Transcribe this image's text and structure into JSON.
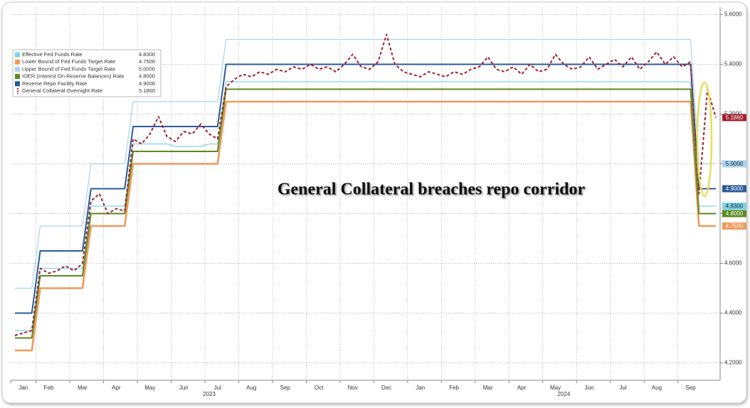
{
  "chart_data": {
    "type": "line",
    "annotation": "General Collateral breaches repo corridor",
    "categories": [
      null,
      "Jan",
      null,
      null,
      "Feb",
      null,
      null,
      null,
      "Mar",
      null,
      null,
      null,
      "Apr",
      null,
      null,
      null,
      "May",
      null,
      null,
      null,
      "Jun",
      null,
      null,
      null,
      "Jul",
      null,
      null,
      null,
      "Aug",
      null,
      null,
      null,
      "Sep",
      null,
      null,
      null,
      "Oct",
      null,
      null,
      null,
      "Nov",
      null,
      null,
      null,
      "Dec",
      null,
      null,
      null,
      "Jan",
      null,
      null,
      null,
      "Feb",
      null,
      null,
      null,
      "Mar",
      null,
      null,
      null,
      "Apr",
      null,
      null,
      null,
      "May",
      null,
      null,
      null,
      "Jun",
      null,
      null,
      null,
      "Jul",
      null,
      null,
      null,
      "Aug",
      null,
      null,
      null,
      "Sep",
      null,
      null,
      null
    ],
    "x_groups": [
      {
        "label": "2023",
        "from": 0,
        "to": 46
      },
      {
        "label": "2024",
        "from": 47,
        "to": 83
      }
    ],
    "ylim": [
      4.13,
      5.63
    ],
    "yticks": [
      {
        "value": 4.2,
        "label": "4.2000"
      },
      {
        "value": 4.4,
        "label": "4.4000"
      },
      {
        "value": 4.6,
        "label": "4.6000"
      },
      {
        "value": 4.8,
        "label": "4.8000"
      },
      {
        "value": 5.0,
        "label": "5.0000"
      },
      {
        "value": 5.2,
        "label": "5.2000"
      },
      {
        "value": 5.4,
        "label": "5.4000"
      },
      {
        "value": 5.6,
        "label": "5.6000"
      }
    ],
    "grid": true,
    "legend": "upper left",
    "series": [
      {
        "name": "Effective Fed Funds Rate",
        "color": "#7fd3e6",
        "last_value_label": "4.8300",
        "values": [
          4.33,
          4.33,
          4.33,
          4.58,
          4.58,
          4.58,
          4.58,
          4.58,
          4.58,
          4.83,
          4.83,
          4.83,
          4.83,
          4.83,
          5.08,
          5.08,
          5.08,
          5.08,
          5.08,
          5.07,
          5.07,
          5.07,
          5.07,
          5.08,
          5.08,
          5.33,
          5.33,
          5.33,
          5.33,
          5.33,
          5.33,
          5.33,
          5.33,
          5.33,
          5.33,
          5.33,
          5.33,
          5.33,
          5.33,
          5.33,
          5.33,
          5.33,
          5.33,
          5.33,
          5.33,
          5.33,
          5.33,
          5.33,
          5.33,
          5.33,
          5.33,
          5.33,
          5.33,
          5.33,
          5.33,
          5.33,
          5.33,
          5.33,
          5.33,
          5.33,
          5.33,
          5.33,
          5.33,
          5.33,
          5.33,
          5.33,
          5.33,
          5.33,
          5.33,
          5.33,
          5.33,
          5.33,
          5.33,
          5.33,
          5.33,
          5.33,
          5.33,
          5.33,
          5.33,
          5.33,
          5.33,
          4.83,
          4.83,
          4.83
        ]
      },
      {
        "name": "Lower Bound of Fed Funds Target Rate",
        "color": "#f0995a",
        "last_value_label": "4.7500",
        "values": [
          4.25,
          4.25,
          4.25,
          4.5,
          4.5,
          4.5,
          4.5,
          4.5,
          4.5,
          4.75,
          4.75,
          4.75,
          4.75,
          4.75,
          5.0,
          5.0,
          5.0,
          5.0,
          5.0,
          5.0,
          5.0,
          5.0,
          5.0,
          5.0,
          5.0,
          5.25,
          5.25,
          5.25,
          5.25,
          5.25,
          5.25,
          5.25,
          5.25,
          5.25,
          5.25,
          5.25,
          5.25,
          5.25,
          5.25,
          5.25,
          5.25,
          5.25,
          5.25,
          5.25,
          5.25,
          5.25,
          5.25,
          5.25,
          5.25,
          5.25,
          5.25,
          5.25,
          5.25,
          5.25,
          5.25,
          5.25,
          5.25,
          5.25,
          5.25,
          5.25,
          5.25,
          5.25,
          5.25,
          5.25,
          5.25,
          5.25,
          5.25,
          5.25,
          5.25,
          5.25,
          5.25,
          5.25,
          5.25,
          5.25,
          5.25,
          5.25,
          5.25,
          5.25,
          5.25,
          5.25,
          5.25,
          4.75,
          4.75,
          4.75
        ]
      },
      {
        "name": "Upper Bound of Fed Funds Target Rate",
        "color": "#a9d3ec",
        "last_value_label": "5.0000",
        "values": [
          4.5,
          4.5,
          4.5,
          4.75,
          4.75,
          4.75,
          4.75,
          4.75,
          4.75,
          5.0,
          5.0,
          5.0,
          5.0,
          5.0,
          5.25,
          5.25,
          5.25,
          5.25,
          5.25,
          5.25,
          5.25,
          5.25,
          5.25,
          5.25,
          5.25,
          5.5,
          5.5,
          5.5,
          5.5,
          5.5,
          5.5,
          5.5,
          5.5,
          5.5,
          5.5,
          5.5,
          5.5,
          5.5,
          5.5,
          5.5,
          5.5,
          5.5,
          5.5,
          5.5,
          5.5,
          5.5,
          5.5,
          5.5,
          5.5,
          5.5,
          5.5,
          5.5,
          5.5,
          5.5,
          5.5,
          5.5,
          5.5,
          5.5,
          5.5,
          5.5,
          5.5,
          5.5,
          5.5,
          5.5,
          5.5,
          5.5,
          5.5,
          5.5,
          5.5,
          5.5,
          5.5,
          5.5,
          5.5,
          5.5,
          5.5,
          5.5,
          5.5,
          5.5,
          5.5,
          5.5,
          5.5,
          5.0,
          5.0,
          5.0
        ]
      },
      {
        "name": "IOER (Interest On Reserve Balances) Rate",
        "color": "#5b8a1f",
        "last_value_label": "4.8000",
        "values": [
          4.3,
          4.3,
          4.3,
          4.55,
          4.55,
          4.55,
          4.55,
          4.55,
          4.55,
          4.8,
          4.8,
          4.8,
          4.8,
          4.8,
          5.05,
          5.05,
          5.05,
          5.05,
          5.05,
          5.05,
          5.05,
          5.05,
          5.05,
          5.05,
          5.05,
          5.3,
          5.3,
          5.3,
          5.3,
          5.3,
          5.3,
          5.3,
          5.3,
          5.3,
          5.3,
          5.3,
          5.3,
          5.3,
          5.3,
          5.3,
          5.3,
          5.3,
          5.3,
          5.3,
          5.3,
          5.3,
          5.3,
          5.3,
          5.3,
          5.3,
          5.3,
          5.3,
          5.3,
          5.3,
          5.3,
          5.3,
          5.3,
          5.3,
          5.3,
          5.3,
          5.3,
          5.3,
          5.3,
          5.3,
          5.3,
          5.3,
          5.3,
          5.3,
          5.3,
          5.3,
          5.3,
          5.3,
          5.3,
          5.3,
          5.3,
          5.3,
          5.3,
          5.3,
          5.3,
          5.3,
          5.3,
          4.8,
          4.8,
          4.8
        ]
      },
      {
        "name": "Reverse Repo Facility Rate",
        "color": "#2b5b98",
        "last_value_label": "4.9000",
        "values": [
          4.4,
          4.4,
          4.4,
          4.65,
          4.65,
          4.65,
          4.65,
          4.65,
          4.65,
          4.9,
          4.9,
          4.9,
          4.9,
          4.9,
          5.15,
          5.15,
          5.15,
          5.15,
          5.15,
          5.15,
          5.15,
          5.15,
          5.15,
          5.15,
          5.15,
          5.4,
          5.4,
          5.4,
          5.4,
          5.4,
          5.4,
          5.4,
          5.4,
          5.4,
          5.4,
          5.4,
          5.4,
          5.4,
          5.4,
          5.4,
          5.4,
          5.4,
          5.4,
          5.4,
          5.4,
          5.4,
          5.4,
          5.4,
          5.4,
          5.4,
          5.4,
          5.4,
          5.4,
          5.4,
          5.4,
          5.4,
          5.4,
          5.4,
          5.4,
          5.4,
          5.4,
          5.4,
          5.4,
          5.4,
          5.4,
          5.4,
          5.4,
          5.4,
          5.4,
          5.4,
          5.4,
          5.4,
          5.4,
          5.4,
          5.4,
          5.4,
          5.4,
          5.4,
          5.4,
          5.4,
          5.4,
          4.9,
          4.9,
          4.9
        ]
      },
      {
        "name": "General Collateral Overnight Rate",
        "color": "#a21f2f",
        "dashed": true,
        "last_value_label": "5.1860",
        "values": [
          4.31,
          4.32,
          4.33,
          4.58,
          4.56,
          4.57,
          4.59,
          4.57,
          4.6,
          4.85,
          4.88,
          4.8,
          4.82,
          4.81,
          5.1,
          5.08,
          5.12,
          5.19,
          5.11,
          5.09,
          5.13,
          5.12,
          5.16,
          5.12,
          5.1,
          5.31,
          5.34,
          5.36,
          5.35,
          5.37,
          5.36,
          5.38,
          5.37,
          5.39,
          5.38,
          5.4,
          5.38,
          5.39,
          5.37,
          5.4,
          5.44,
          5.39,
          5.38,
          5.41,
          5.52,
          5.4,
          5.37,
          5.36,
          5.35,
          5.37,
          5.36,
          5.35,
          5.37,
          5.36,
          5.38,
          5.39,
          5.43,
          5.38,
          5.37,
          5.39,
          5.36,
          5.4,
          5.37,
          5.38,
          5.44,
          5.4,
          5.38,
          5.39,
          5.43,
          5.38,
          5.4,
          5.42,
          5.39,
          5.43,
          5.38,
          5.41,
          5.45,
          5.4,
          5.43,
          5.39,
          5.41,
          4.88,
          5.3,
          5.186
        ]
      }
    ]
  }
}
